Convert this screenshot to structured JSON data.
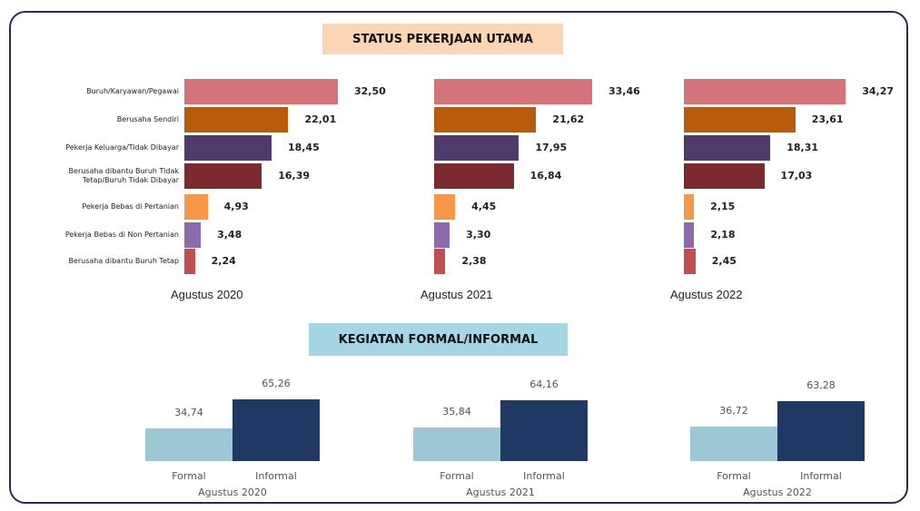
{
  "chart_data": [
    {
      "type": "hbar",
      "title": "STATUS PEKERJAAN UTAMA",
      "categories": [
        "Buruh/Karyawan/Pegawai",
        "Berusaha Sendiri",
        "Pekerja Keluarga/Tidak Dibayar",
        "Berusaha dibantu Buruh Tidak Tetap/Buruh Tidak Dibayar",
        "Pekerja Bebas di Pertanian",
        "Pekerja Bebas di Non Pertanian",
        "Berusaha dibantu Buruh Tetap"
      ],
      "colors": [
        "#d4737a",
        "#b85c0c",
        "#4e3b6b",
        "#7b2a2e",
        "#f79646",
        "#8a6bb0",
        "#c0504d"
      ],
      "series": [
        {
          "name": "Agustus 2020",
          "values": [
            32.5,
            22.01,
            18.45,
            16.39,
            4.93,
            3.48,
            2.24
          ],
          "value_labels": [
            "32,50",
            "22,01",
            "18,45",
            "16,39",
            "4,93",
            "3,48",
            "2,24"
          ]
        },
        {
          "name": "Agustus 2021",
          "values": [
            33.46,
            21.62,
            17.95,
            16.84,
            4.45,
            3.3,
            2.38
          ],
          "value_labels": [
            "33,46",
            "21,62",
            "17,95",
            "16,84",
            "4,45",
            "3,30",
            "2,38"
          ]
        },
        {
          "name": "Agustus 2022",
          "values": [
            34.27,
            23.61,
            18.31,
            17.03,
            2.15,
            2.18,
            2.45
          ],
          "value_labels": [
            "34,27",
            "23,61",
            "18,31",
            "17,03",
            "2,15",
            "2,18",
            "2,45"
          ]
        }
      ]
    },
    {
      "type": "bar",
      "title": "KEGIATAN FORMAL/INFORMAL",
      "xlabel": "Agustus 2020",
      "categories": [
        "Formal",
        "Informal"
      ],
      "colors": [
        "#9cc8d6",
        "#1f3864"
      ],
      "values": [
        34.74,
        65.26
      ],
      "value_labels": [
        "34,74",
        "65,26"
      ]
    },
    {
      "type": "bar",
      "xlabel": "Agustus 2021",
      "categories": [
        "Formal",
        "Informal"
      ],
      "colors": [
        "#9cc8d6",
        "#1f3864"
      ],
      "values": [
        35.84,
        64.16
      ],
      "value_labels": [
        "35,84",
        "64,16"
      ]
    },
    {
      "type": "bar",
      "xlabel": "Agustus 2022",
      "categories": [
        "Formal",
        "Informal"
      ],
      "colors": [
        "#9cc8d6",
        "#1f3864"
      ],
      "values": [
        36.72,
        63.28
      ],
      "value_labels": [
        "36,72",
        "63,28"
      ]
    }
  ]
}
